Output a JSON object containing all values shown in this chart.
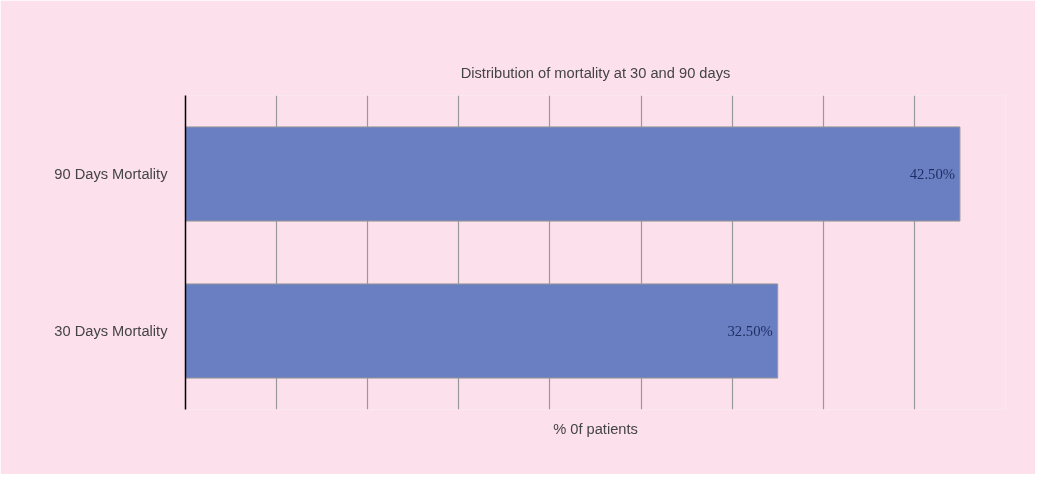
{
  "chart_data": {
    "type": "bar",
    "orientation": "horizontal",
    "title": "Distribution of mortality at 30 and 90 days",
    "xlabel": "% 0f patients",
    "categories": [
      "90 Days Mortality",
      "30 Days Mortality"
    ],
    "values": [
      42.5,
      32.5
    ],
    "value_labels": [
      "42.50%",
      "32.50%"
    ],
    "color": "#6a7fc1",
    "xlim": [
      0,
      45
    ],
    "xticks": [
      {
        "value": 0,
        "label": null
      },
      {
        "value": 5,
        "label": null
      },
      {
        "value": 10,
        "label": null
      },
      {
        "value": 15,
        "label": null
      },
      {
        "value": 20,
        "label": null
      },
      {
        "value": 25,
        "label": null
      },
      {
        "value": 30,
        "label": null
      },
      {
        "value": 35,
        "label": null
      },
      {
        "value": 40,
        "label": null
      },
      {
        "value": 45,
        "label": null
      }
    ],
    "grid": "x",
    "tick_labels": "y"
  }
}
